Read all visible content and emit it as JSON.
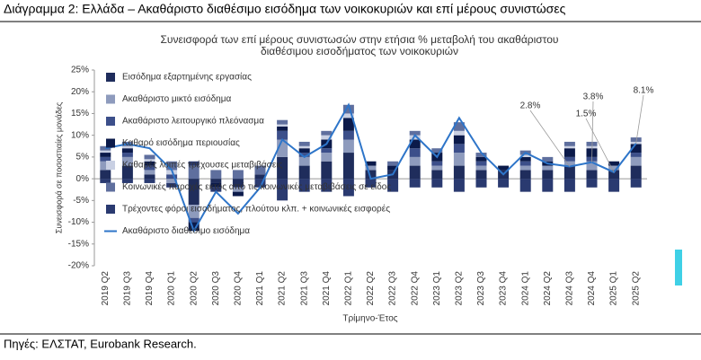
{
  "header": {
    "title": "Διάγραμμα 2: Ελλάδα – Ακαθάριστο διαθέσιμο εισόδημα των νοικοκυριών και επί μέρους συνιστώσες"
  },
  "chart_data": {
    "type": "bar",
    "title": "Συνεισφορά των επί μέρους συνιστωσών στην ετήσια % μεταβολή του ακαθάριστου",
    "subtitle": "διαθέσιμου εισοδήματος των νοικοκυριών",
    "y_label": "Συνεισφορά σε ποσοστιαίες μονάδες",
    "x_label": "Τρίμηνο-Έτος",
    "categories": [
      "2019 Q2",
      "2019 Q3",
      "2019 Q4",
      "2020 Q1",
      "2020 Q2",
      "2020 Q3",
      "2020 Q4",
      "2021 Q1",
      "2021 Q2",
      "2021 Q3",
      "2021 Q4",
      "2022 Q1",
      "2022 Q2",
      "2022 Q3",
      "2022 Q4",
      "2023 Q1",
      "2023 Q2",
      "2023 Q3",
      "2023 Q4",
      "2024 Q1",
      "2024 Q2",
      "2024 Q3",
      "2024 Q4",
      "2025 Q1",
      "2025 Q2"
    ],
    "ylim": [
      -20,
      25
    ],
    "yticks": [
      {
        "value": -20,
        "label": "-20%"
      },
      {
        "value": -15,
        "label": "-15%"
      },
      {
        "value": -10,
        "label": "-10%"
      },
      {
        "value": -5,
        "label": "-5%"
      },
      {
        "value": 0,
        "label": "0%"
      },
      {
        "value": 5,
        "label": "5%"
      },
      {
        "value": 10,
        "label": "10%"
      },
      {
        "value": 15,
        "label": "15%"
      },
      {
        "value": 20,
        "label": "20%"
      },
      {
        "value": 25,
        "label": "25%"
      }
    ],
    "series": [
      {
        "name": "Εισόδημα εξαρτημένης εργασίας",
        "color": "#1f2d5c",
        "values": [
          2,
          3,
          1,
          0,
          -6,
          -1,
          -2,
          1,
          5,
          3,
          4,
          6,
          2,
          2,
          3,
          2,
          3,
          2,
          2,
          2,
          2,
          3,
          2,
          2,
          3
        ]
      },
      {
        "name": "Ακαθάριστο μικτό εισόδημα",
        "color": "#8e9bbd",
        "values": [
          2,
          2,
          1,
          -1,
          -3,
          0,
          -1,
          0,
          4,
          2,
          2,
          3,
          1,
          0,
          2,
          1,
          3,
          1,
          0,
          1,
          1,
          1,
          2,
          1,
          2
        ]
      },
      {
        "name": "Ακαθάριστο λειτουργικό πλεόνασμα",
        "color": "#3c4f8a",
        "values": [
          1,
          1,
          1,
          1,
          -1,
          0,
          0,
          0,
          2,
          1,
          1,
          2,
          0,
          0,
          2,
          1,
          2,
          1,
          0,
          1,
          0,
          1,
          1,
          0,
          1
        ]
      },
      {
        "name": "Καθαρό εισόδημα περιουσίας",
        "color": "#0b1a4a",
        "values": [
          1,
          1,
          1,
          0,
          -2,
          -1,
          -1,
          0,
          1,
          1,
          2,
          3,
          1,
          1,
          2,
          2,
          2,
          1,
          1,
          1,
          1,
          2,
          2,
          1,
          2
        ]
      },
      {
        "name": "Καθαρές λοιπές τρέχουσες μεταβιβάσεις",
        "color": "#c9d0e3",
        "values": [
          0.5,
          0.5,
          0.5,
          1,
          0,
          0,
          0,
          0,
          0.5,
          0.5,
          1,
          1,
          0,
          0,
          1,
          0,
          1,
          0,
          0,
          0.5,
          0,
          0.5,
          0.5,
          0,
          0.5
        ]
      },
      {
        "name": "Κοινωνικές παροχές εκτός από τις κοινωνικές μεταβιβάσεις σε είδος",
        "color": "#5f6f9e",
        "values": [
          1,
          1,
          1,
          2,
          3,
          2,
          2,
          2,
          1,
          1,
          1,
          2,
          0,
          1,
          1,
          1,
          2,
          1,
          0,
          1,
          1,
          1,
          1,
          0,
          1
        ]
      },
      {
        "name": "Τρέχοντες φόροι εισοδήματος, πλούτου κλπ. + κοινωνικές εισφορές",
        "color": "#2a3a70",
        "values": [
          -1,
          -1,
          -1,
          -1,
          1,
          -1,
          0,
          -2,
          -5,
          -3,
          -3,
          -4,
          -2,
          -3,
          -2,
          -2,
          -3,
          -2,
          -2,
          -3,
          -3,
          -3,
          -2,
          -3,
          -2
        ]
      },
      {
        "name": "Ακαθάριστο διαθέσιμο εισόδημα",
        "color": "#2e75c9",
        "type": "line",
        "values": [
          7,
          8,
          7,
          2,
          -12,
          -3,
          -8,
          -2,
          9,
          5,
          8,
          17,
          0,
          1,
          10,
          5,
          14,
          6,
          1,
          6,
          3.5,
          2.8,
          3.8,
          1.5,
          8.1
        ],
        "value_labels": [
          null,
          null,
          null,
          null,
          null,
          null,
          null,
          null,
          null,
          null,
          null,
          null,
          null,
          null,
          null,
          null,
          null,
          null,
          null,
          null,
          null,
          "2.8%",
          "3.8%",
          "1.5%",
          "8.1%"
        ]
      }
    ]
  },
  "footer": {
    "source": "Πηγές: ΕΛΣΤΑΤ, Eurobank Research."
  }
}
